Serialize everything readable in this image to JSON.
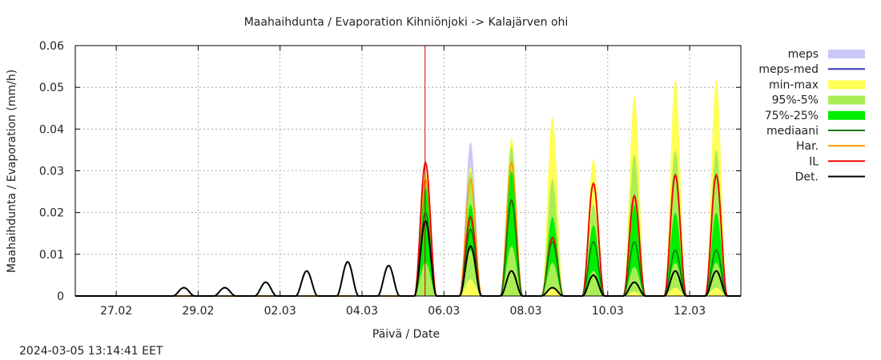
{
  "chart_data": {
    "type": "area",
    "title": "Maahaihdunta / Evaporation  Kihniönjoki -> Kalajärven ohi",
    "xlabel": "Päivä / Date",
    "ylabel": "Maahaihdunta / Evaporation (mm/h)",
    "timestamp": "2024-03-05 13:14:41 EET",
    "x_unit": "days since 26.02 00:00",
    "xlim": [
      0,
      16.25
    ],
    "ylim": [
      0,
      0.06
    ],
    "yticks": [
      {
        "v": 0,
        "label": "0"
      },
      {
        "v": 0.01,
        "label": "0.01"
      },
      {
        "v": 0.02,
        "label": "0.02"
      },
      {
        "v": 0.03,
        "label": "0.03"
      },
      {
        "v": 0.04,
        "label": "0.04"
      },
      {
        "v": 0.05,
        "label": "0.05"
      },
      {
        "v": 0.06,
        "label": "0.06"
      }
    ],
    "xticks": [
      {
        "v": 1,
        "label": "27.02"
      },
      {
        "v": 3,
        "label": "29.02"
      },
      {
        "v": 5,
        "label": "02.03"
      },
      {
        "v": 7,
        "label": "04.03"
      },
      {
        "v": 9,
        "label": "06.03"
      },
      {
        "v": 11,
        "label": "08.03"
      },
      {
        "v": 13,
        "label": "10.03"
      },
      {
        "v": 15,
        "label": "12.03"
      }
    ],
    "grid": true,
    "now_marker": 8.54,
    "legend": [
      {
        "label": "meps",
        "color": "#c8c8f8",
        "kind": "fill"
      },
      {
        "label": "meps-med",
        "color": "#3333bb",
        "kind": "line"
      },
      {
        "label": "min-max",
        "color": "#ffff55",
        "kind": "fill"
      },
      {
        "label": "95%-5%",
        "color": "#aaee55",
        "kind": "fill"
      },
      {
        "label": "75%-25%",
        "color": "#00ee00",
        "kind": "fill"
      },
      {
        "label": "mediaani",
        "color": "#117711",
        "kind": "line"
      },
      {
        "label": "Har.",
        "color": "#ff9900",
        "kind": "line"
      },
      {
        "label": "IL",
        "color": "#ee0000",
        "kind": "line"
      },
      {
        "label": "Det.",
        "color": "#000000",
        "kind": "line"
      }
    ],
    "peak_centers": [
      8.55,
      9.65,
      10.65,
      11.65,
      12.65,
      13.65,
      14.65,
      15.65
    ],
    "peak_half_width": 0.27,
    "history_peaks": [
      {
        "x": 2.65,
        "y": 0.002
      },
      {
        "x": 3.65,
        "y": 0.002
      },
      {
        "x": 4.65,
        "y": 0.0033
      },
      {
        "x": 5.65,
        "y": 0.006
      },
      {
        "x": 6.65,
        "y": 0.0082
      },
      {
        "x": 7.65,
        "y": 0.0073
      }
    ],
    "series": [
      {
        "name": "meps",
        "values": [
          0.028,
          0.037,
          0.0,
          0.0,
          0.0,
          0.0,
          0.0,
          0.0
        ]
      },
      {
        "name": "min",
        "values": [
          0.0,
          0.0,
          0.0,
          0.0,
          0.0,
          0.0,
          0.0,
          0.0
        ]
      },
      {
        "name": "max",
        "values": [
          0.03,
          0.031,
          0.038,
          0.043,
          0.033,
          0.048,
          0.052,
          0.052
        ]
      },
      {
        "name": "p5",
        "values": [
          0.0,
          0.004,
          0.0,
          0.002,
          0.0,
          0.001,
          0.002,
          0.002
        ]
      },
      {
        "name": "p95",
        "values": [
          0.028,
          0.03,
          0.036,
          0.028,
          0.022,
          0.034,
          0.035,
          0.035
        ]
      },
      {
        "name": "p25",
        "values": [
          0.008,
          0.011,
          0.012,
          0.008,
          0.006,
          0.007,
          0.008,
          0.008
        ]
      },
      {
        "name": "p75",
        "values": [
          0.026,
          0.022,
          0.03,
          0.019,
          0.017,
          0.022,
          0.02,
          0.02
        ]
      },
      {
        "name": "mediaani",
        "values": [
          0.02,
          0.016,
          0.023,
          0.013,
          0.013,
          0.013,
          0.011,
          0.011
        ]
      },
      {
        "name": "Har.",
        "values": [
          0.028,
          0.028,
          0.032,
          0.014,
          0.027,
          0.023,
          0.029,
          0.029
        ]
      },
      {
        "name": "IL",
        "values": [
          0.032,
          0.019,
          0.023,
          0.014,
          0.027,
          0.024,
          0.029,
          0.029
        ]
      },
      {
        "name": "Det.",
        "values": [
          0.018,
          0.012,
          0.006,
          0.002,
          0.005,
          0.0033,
          0.006,
          0.006
        ]
      }
    ]
  }
}
